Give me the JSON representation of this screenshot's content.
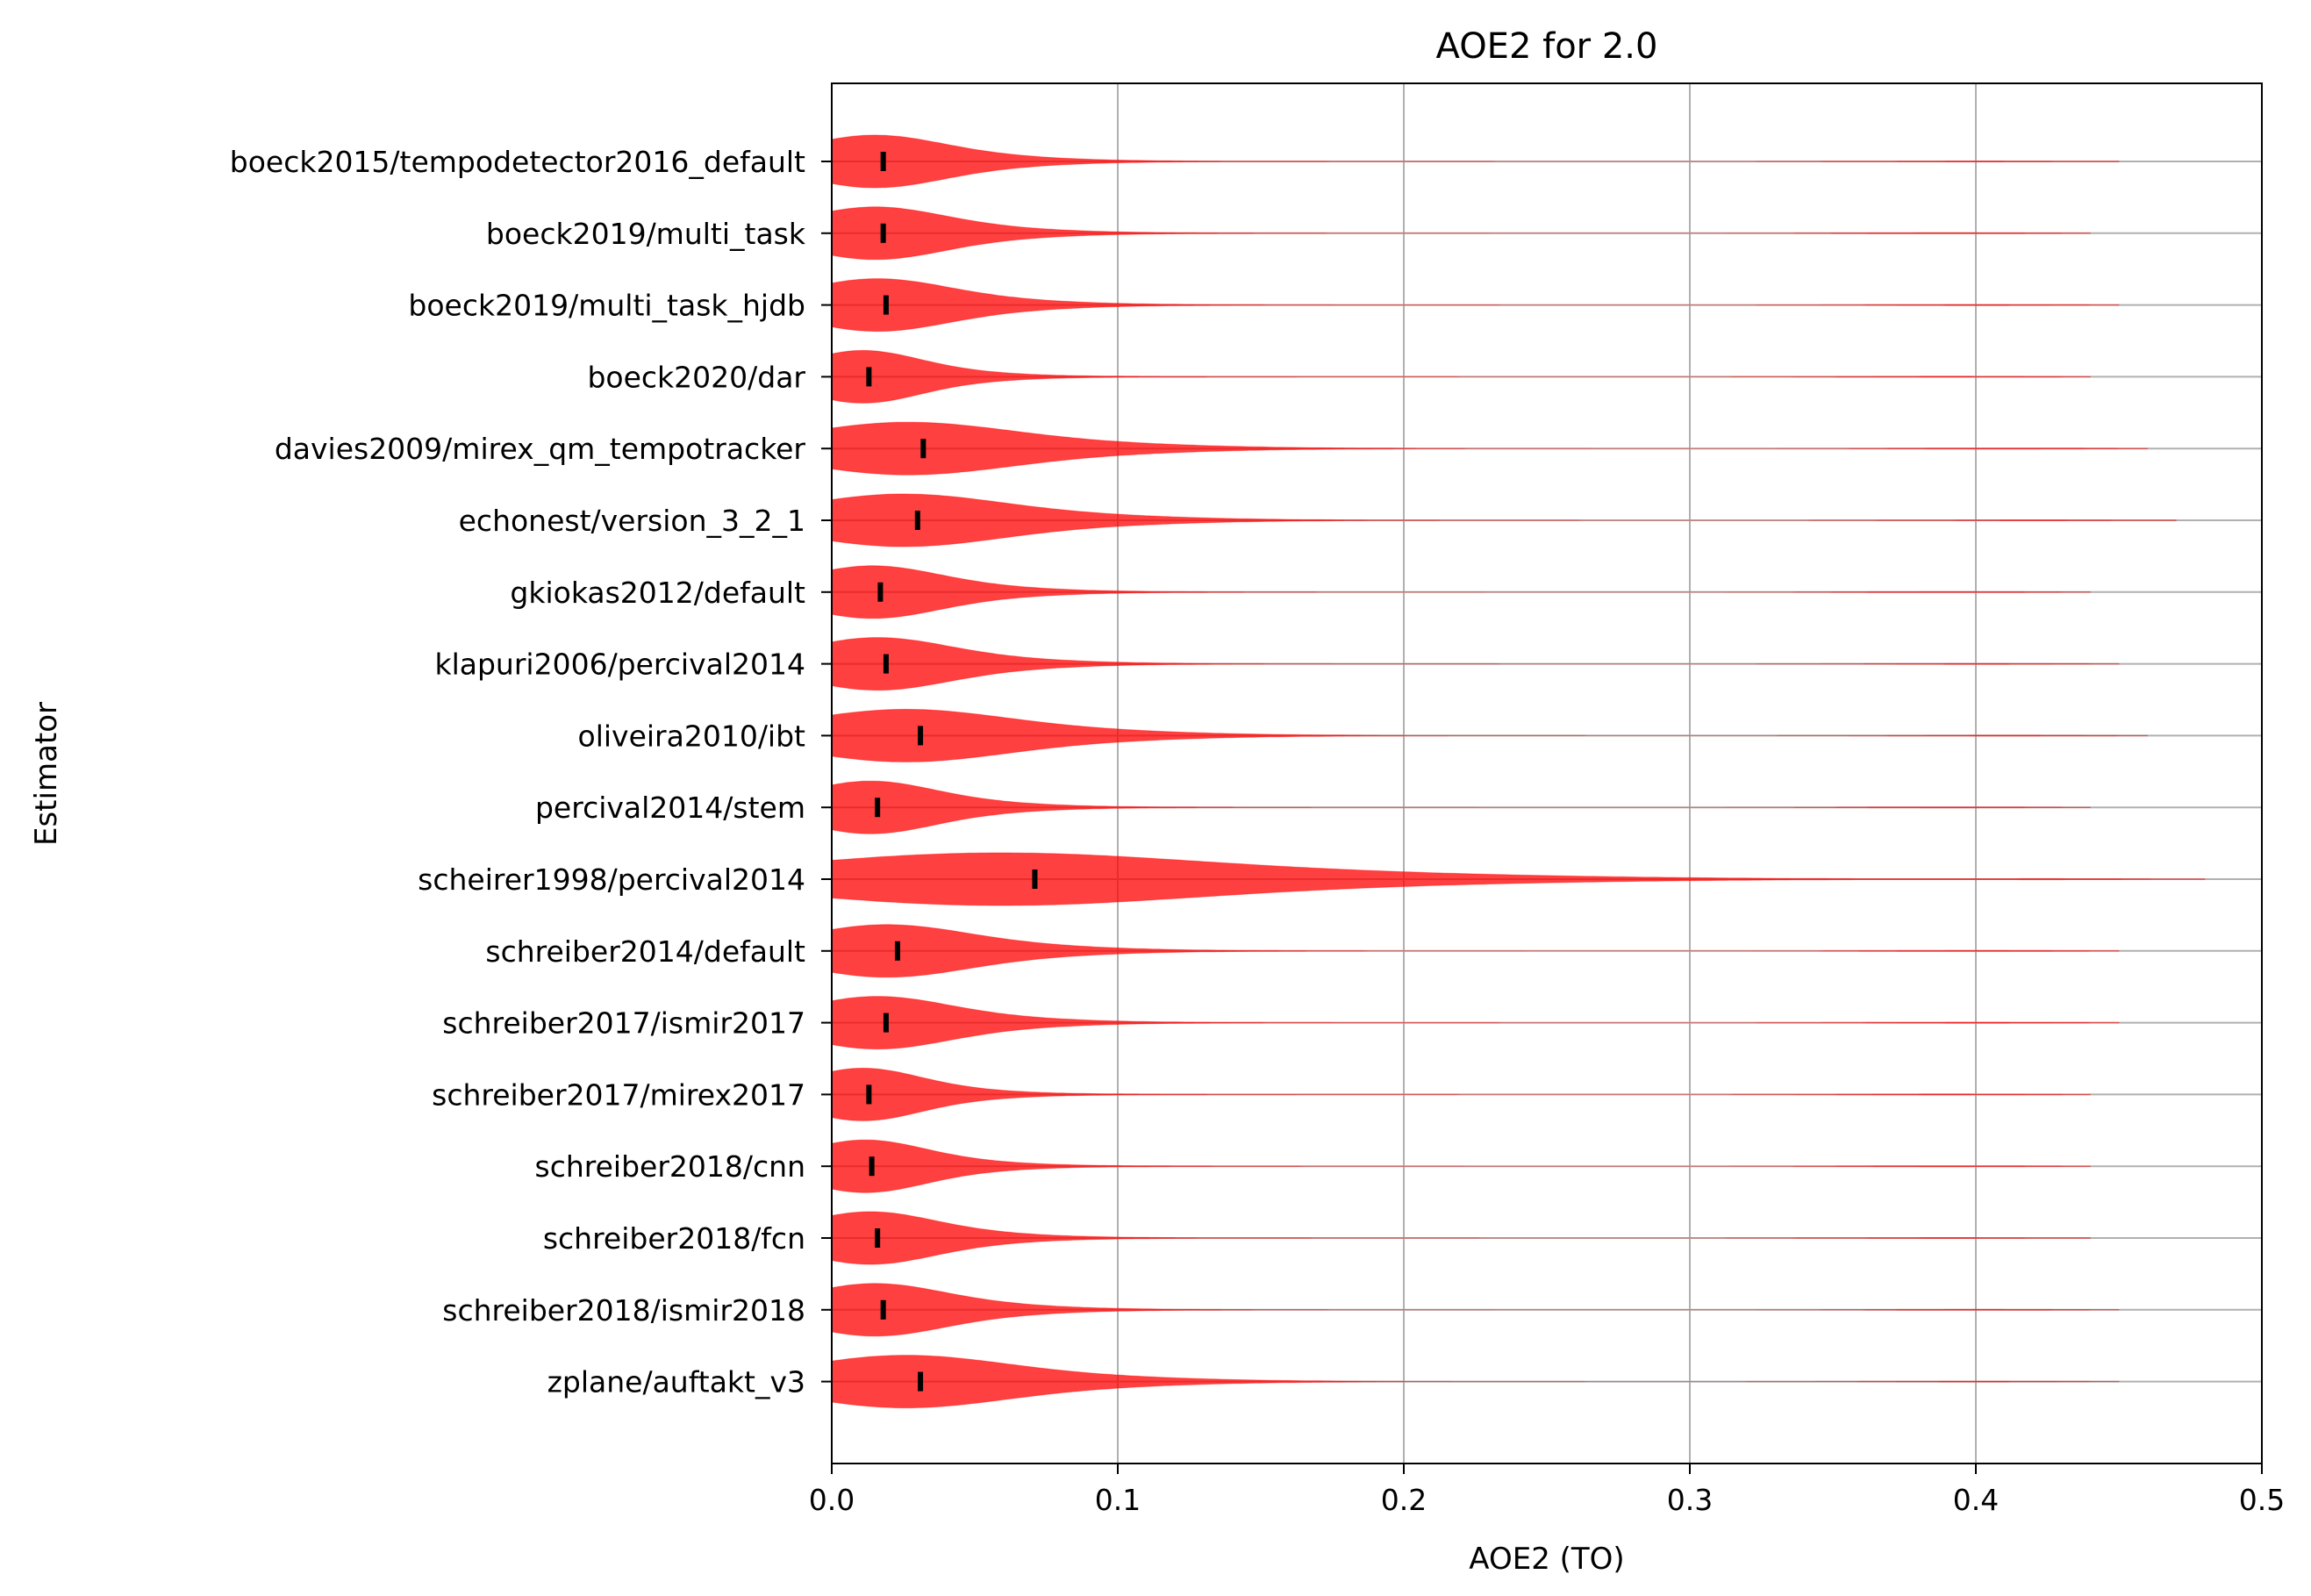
{
  "chart_data": {
    "type": "violin",
    "orientation": "horizontal",
    "title": "AOE2 for 2.0",
    "xlabel": "AOE2 (TO)",
    "ylabel": "Estimator",
    "xlim": [
      0.0,
      0.5
    ],
    "xticks": [
      0.0,
      0.1,
      0.2,
      0.3,
      0.4,
      0.5
    ],
    "xtick_labels": [
      "0.0",
      "0.1",
      "0.2",
      "0.3",
      "0.4",
      "0.5"
    ],
    "grid": true,
    "violin_color": "#ff0000",
    "median_marker_color": "#000000",
    "series": [
      {
        "name": "boeck2015/tempodetector2016_default",
        "median": 0.018,
        "max": 0.45
      },
      {
        "name": "boeck2019/multi_task",
        "median": 0.018,
        "max": 0.44
      },
      {
        "name": "boeck2019/multi_task_hjdb",
        "median": 0.019,
        "max": 0.45
      },
      {
        "name": "boeck2020/dar",
        "median": 0.013,
        "max": 0.44
      },
      {
        "name": "davies2009/mirex_qm_tempotracker",
        "median": 0.032,
        "max": 0.46
      },
      {
        "name": "echonest/version_3_2_1",
        "median": 0.03,
        "max": 0.47
      },
      {
        "name": "gkiokas2012/default",
        "median": 0.017,
        "max": 0.44
      },
      {
        "name": "klapuri2006/percival2014",
        "median": 0.019,
        "max": 0.45
      },
      {
        "name": "oliveira2010/ibt",
        "median": 0.031,
        "max": 0.46
      },
      {
        "name": "percival2014/stem",
        "median": 0.016,
        "max": 0.44
      },
      {
        "name": "scheirer1998/percival2014",
        "median": 0.071,
        "max": 0.48
      },
      {
        "name": "schreiber2014/default",
        "median": 0.023,
        "max": 0.45
      },
      {
        "name": "schreiber2017/ismir2017",
        "median": 0.019,
        "max": 0.45
      },
      {
        "name": "schreiber2017/mirex2017",
        "median": 0.013,
        "max": 0.44
      },
      {
        "name": "schreiber2018/cnn",
        "median": 0.014,
        "max": 0.44
      },
      {
        "name": "schreiber2018/fcn",
        "median": 0.016,
        "max": 0.44
      },
      {
        "name": "schreiber2018/ismir2018",
        "median": 0.018,
        "max": 0.45
      },
      {
        "name": "zplane/auftakt_v3",
        "median": 0.031,
        "max": 0.45
      }
    ]
  }
}
